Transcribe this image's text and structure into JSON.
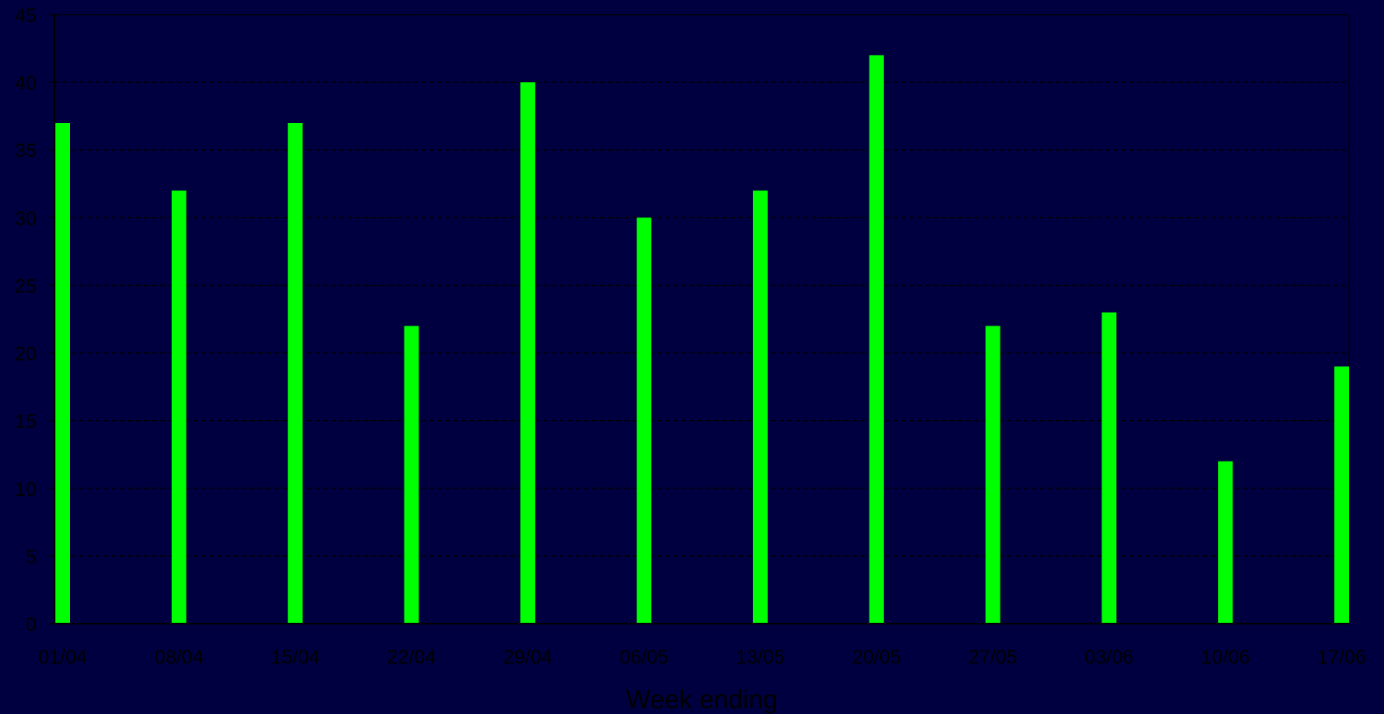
{
  "chart_data": {
    "type": "bar",
    "title": "",
    "xlabel": "Week ending",
    "ylabel": "",
    "ylim": [
      0,
      45
    ],
    "yticks": [
      0,
      5,
      10,
      15,
      20,
      25,
      30,
      35,
      40,
      45
    ],
    "grid": "horizontal dashed",
    "legend": "none",
    "categories": [
      "01/04",
      "08/04",
      "15/04",
      "22/04",
      "29/04",
      "06/05",
      "13/05",
      "20/05",
      "27/05",
      "03/06",
      "10/06",
      "17/06"
    ],
    "values": [
      37,
      32,
      37,
      22,
      40,
      30,
      32,
      42,
      22,
      23,
      12,
      19
    ],
    "colors": {
      "background": "#000040",
      "bar": "#00FF00",
      "text": "#000000",
      "axis": "#000000",
      "grid": "#000000"
    }
  }
}
